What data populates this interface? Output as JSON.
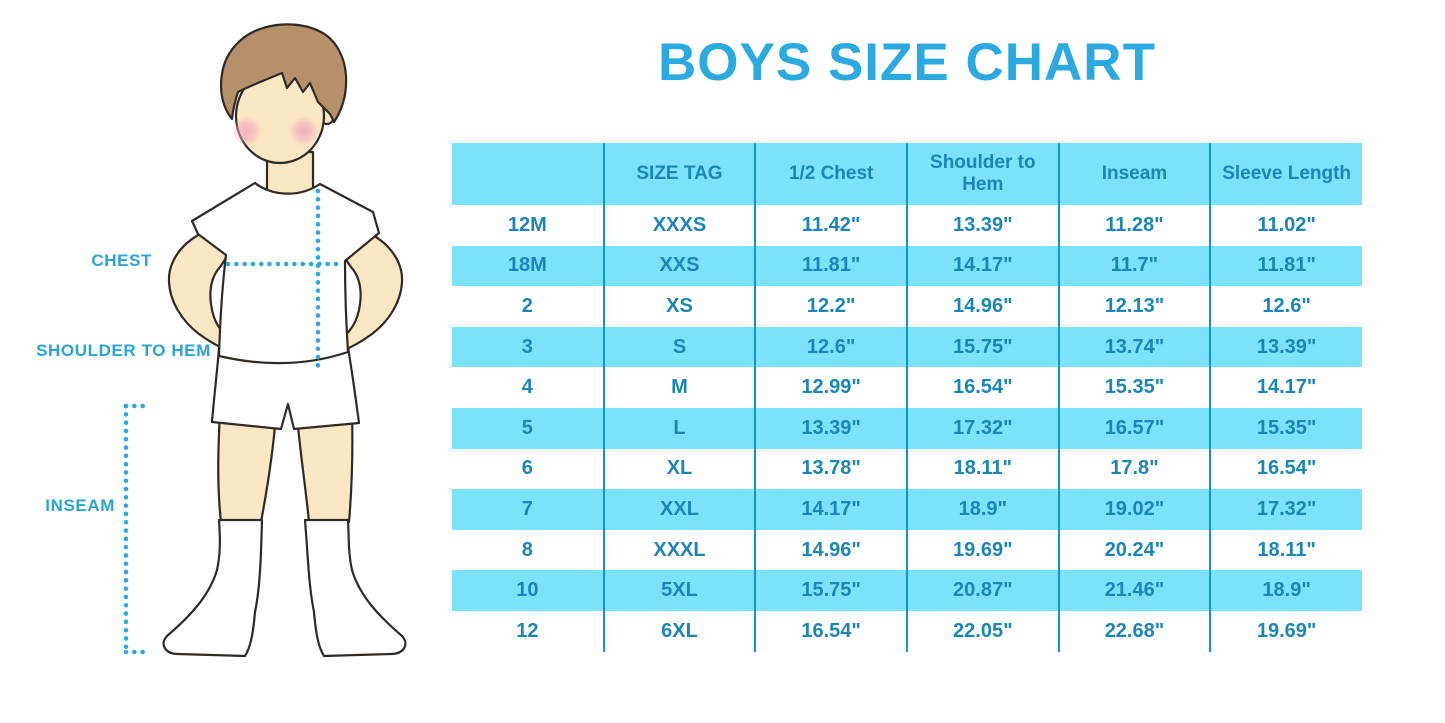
{
  "title": "BOYS SIZE CHART",
  "figure": {
    "labels": {
      "chest": "CHEST",
      "shoulder_to_hem": "SHOULDER TO HEM",
      "inseam": "INSEAM"
    }
  },
  "chart_data": {
    "type": "table",
    "title": "BOYS SIZE CHART",
    "columns": [
      "",
      "SIZE TAG",
      "1/2 Chest",
      "Shoulder to Hem",
      "Inseam",
      "Sleeve Length"
    ],
    "rows": [
      [
        "12M",
        "XXXS",
        "11.42\"",
        "13.39\"",
        "11.28\"",
        "11.02\""
      ],
      [
        "18M",
        "XXS",
        "11.81\"",
        "14.17\"",
        "11.7\"",
        "11.81\""
      ],
      [
        "2",
        "XS",
        "12.2\"",
        "14.96\"",
        "12.13\"",
        "12.6\""
      ],
      [
        "3",
        "S",
        "12.6\"",
        "15.75\"",
        "13.74\"",
        "13.39\""
      ],
      [
        "4",
        "M",
        "12.99\"",
        "16.54\"",
        "15.35\"",
        "14.17\""
      ],
      [
        "5",
        "L",
        "13.39\"",
        "17.32\"",
        "16.57\"",
        "15.35\""
      ],
      [
        "6",
        "XL",
        "13.78\"",
        "18.11\"",
        "17.8\"",
        "16.54\""
      ],
      [
        "7",
        "XXL",
        "14.17\"",
        "18.9\"",
        "19.02\"",
        "17.32\""
      ],
      [
        "8",
        "XXXL",
        "14.96\"",
        "19.69\"",
        "20.24\"",
        "18.11\""
      ],
      [
        "10",
        "5XL",
        "15.75\"",
        "20.87\"",
        "21.46\"",
        "18.9\""
      ],
      [
        "12",
        "6XL",
        "16.54\"",
        "22.05\"",
        "22.68\"",
        "19.69\""
      ]
    ],
    "stripe_pattern": "rows alternate white / cyan starting with white",
    "grid": "vertical column dividers only, no horizontal lines",
    "legend_position": "none"
  },
  "colors": {
    "title_blue": "#2BA9E1",
    "label_blue": "#29A3DC",
    "cell_text_blue": "#1A86B8",
    "band_cyan": "#7AE2FB",
    "divider_blue": "#1193CC",
    "dotted_line_blue": "#29A9E0",
    "skin": "#FBE7C3",
    "hair_brown": "#B5906B",
    "blush_pink": "#F3A9BE"
  }
}
